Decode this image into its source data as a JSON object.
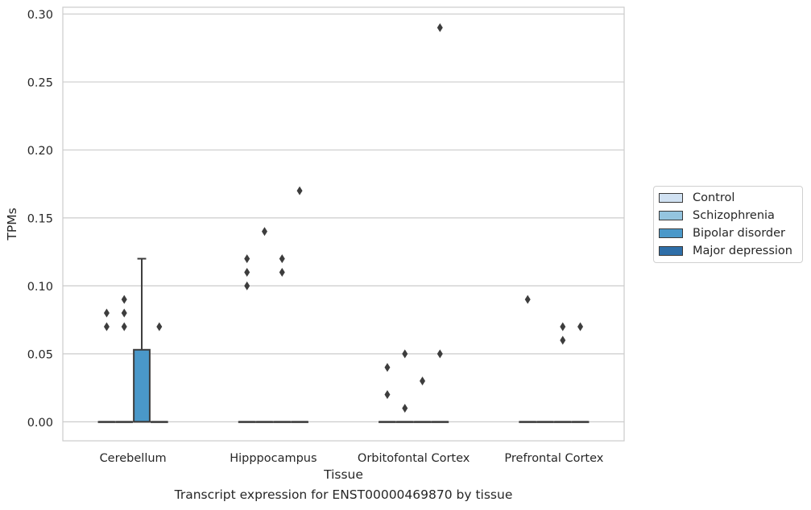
{
  "chart_data": {
    "type": "box",
    "xlabel": "Tissue",
    "ylabel": "TPMs",
    "caption": "Transcript expression for ENST00000469870 by tissue",
    "ylim": [
      -0.014,
      0.305
    ],
    "yticks": [
      0.0,
      0.05,
      0.1,
      0.15,
      0.2,
      0.25,
      0.3
    ],
    "ytick_labels": [
      "0.00",
      "0.05",
      "0.10",
      "0.15",
      "0.20",
      "0.25",
      "0.30"
    ],
    "categories": [
      "Cerebellum",
      "Hipppocampus",
      "Orbitofontal Cortex",
      "Prefrontal Cortex"
    ],
    "grid": "horizontal",
    "legend_position": "right",
    "series": [
      {
        "name": "Control",
        "color": "#d0e1f2",
        "boxes": [
          {
            "q1": 0,
            "median": 0,
            "q3": 0,
            "whisker_low": 0,
            "whisker_high": 0,
            "outliers": [
              0.07,
              0.08
            ]
          },
          {
            "q1": 0,
            "median": 0,
            "q3": 0,
            "whisker_low": 0,
            "whisker_high": 0,
            "outliers": [
              0.1,
              0.11,
              0.12
            ]
          },
          {
            "q1": 0,
            "median": 0,
            "q3": 0,
            "whisker_low": 0,
            "whisker_high": 0,
            "outliers": [
              0.02,
              0.04
            ]
          },
          {
            "q1": 0,
            "median": 0,
            "q3": 0,
            "whisker_low": 0,
            "whisker_high": 0,
            "outliers": [
              0.09
            ]
          }
        ]
      },
      {
        "name": "Schizophrenia",
        "color": "#94c4df",
        "boxes": [
          {
            "q1": 0,
            "median": 0,
            "q3": 0,
            "whisker_low": 0,
            "whisker_high": 0,
            "outliers": [
              0.07,
              0.08,
              0.09
            ]
          },
          {
            "q1": 0,
            "median": 0,
            "q3": 0,
            "whisker_low": 0,
            "whisker_high": 0,
            "outliers": [
              0.14
            ]
          },
          {
            "q1": 0,
            "median": 0,
            "q3": 0,
            "whisker_low": 0,
            "whisker_high": 0,
            "outliers": [
              0.01,
              0.05
            ]
          },
          {
            "q1": 0,
            "median": 0,
            "q3": 0,
            "whisker_low": 0,
            "whisker_high": 0,
            "outliers": []
          }
        ]
      },
      {
        "name": "Bipolar disorder",
        "color": "#4a98c9",
        "boxes": [
          {
            "q1": 0,
            "median": 0,
            "q3": 0.053,
            "whisker_low": 0,
            "whisker_high": 0.12,
            "outliers": []
          },
          {
            "q1": 0,
            "median": 0,
            "q3": 0,
            "whisker_low": 0,
            "whisker_high": 0,
            "outliers": [
              0.11,
              0.12
            ]
          },
          {
            "q1": 0,
            "median": 0,
            "q3": 0,
            "whisker_low": 0,
            "whisker_high": 0,
            "outliers": [
              0.03
            ]
          },
          {
            "q1": 0,
            "median": 0,
            "q3": 0,
            "whisker_low": 0,
            "whisker_high": 0,
            "outliers": [
              0.06,
              0.07
            ]
          }
        ]
      },
      {
        "name": "Major depression",
        "color": "#2e6ea8",
        "boxes": [
          {
            "q1": 0,
            "median": 0,
            "q3": 0,
            "whisker_low": 0,
            "whisker_high": 0,
            "outliers": [
              0.07
            ]
          },
          {
            "q1": 0,
            "median": 0,
            "q3": 0,
            "whisker_low": 0,
            "whisker_high": 0,
            "outliers": [
              0.17
            ]
          },
          {
            "q1": 0,
            "median": 0,
            "q3": 0,
            "whisker_low": 0,
            "whisker_high": 0,
            "outliers": [
              0.05,
              0.29
            ]
          },
          {
            "q1": 0,
            "median": 0,
            "q3": 0,
            "whisker_low": 0,
            "whisker_high": 0,
            "outliers": [
              0.07
            ]
          }
        ]
      }
    ]
  }
}
